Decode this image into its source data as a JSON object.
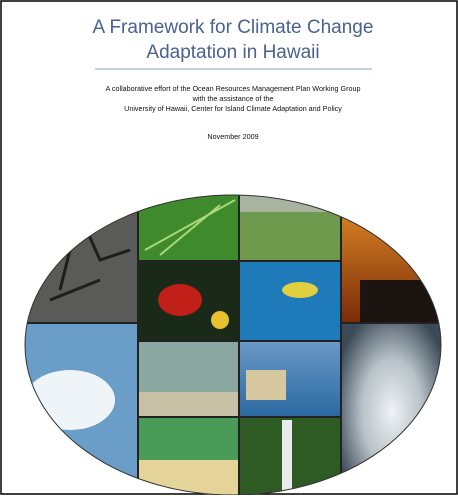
{
  "document": {
    "title_lines": [
      "A Framework for Climate Change",
      "Adaptation in Hawaii"
    ],
    "subtitle_lines": [
      "A collaborative effort of the Ocean Resources Management Plan Working Group",
      "with the assistance of the",
      "University of Hawaii, Center for Island Climate Adaptation and Policy"
    ],
    "date": "November 2009"
  }
}
